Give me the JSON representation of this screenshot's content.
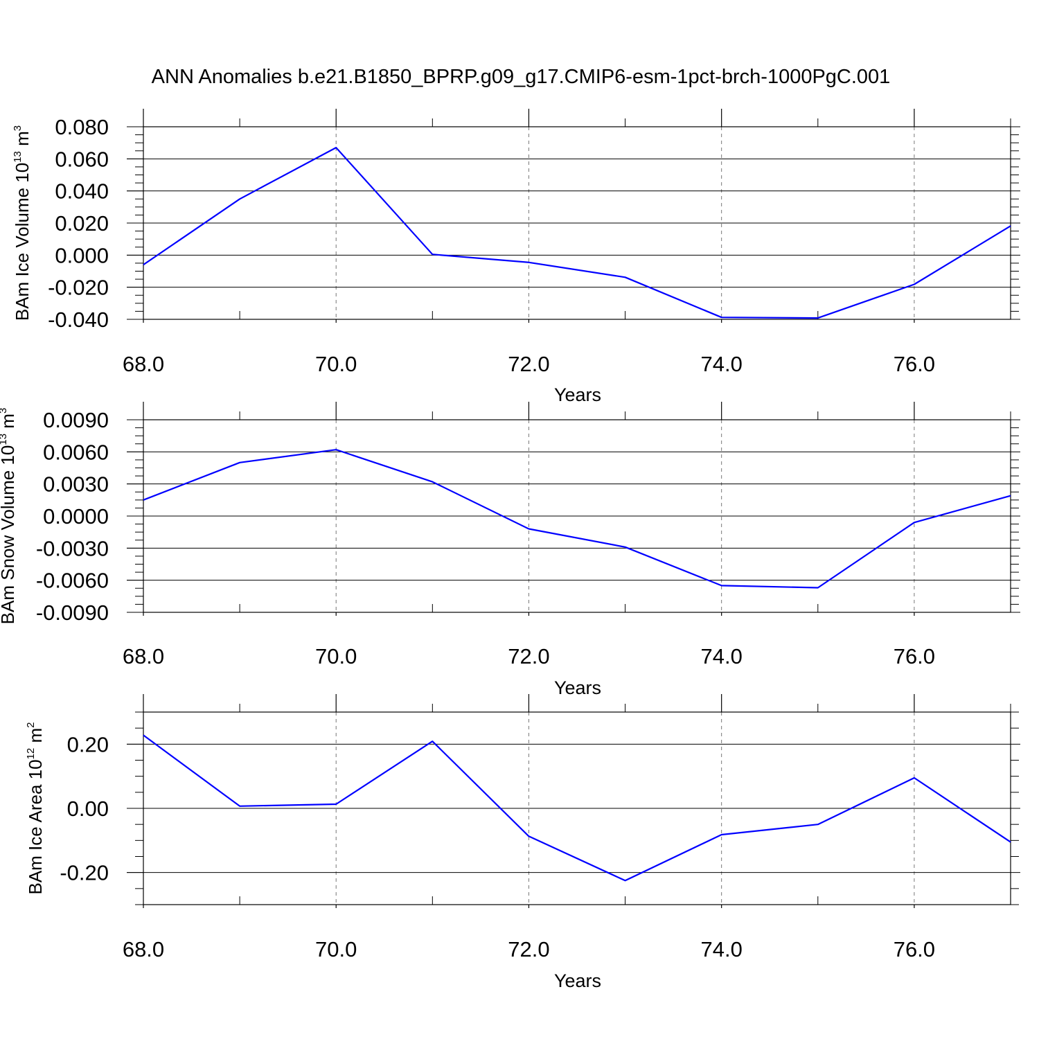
{
  "title": "ANN Anomalies b.e21.B1850_BPRP.g09_g17.CMIP6-esm-1pct-brch-1000PgC.001",
  "line_color": "#0000ff",
  "chart_data": [
    {
      "type": "line",
      "ylabel": {
        "main": "BAm Ice Volume 10",
        "exp": "13",
        "unit": " m",
        "unit_exp": "3"
      },
      "xlabel": "Years",
      "x": [
        68,
        69,
        70,
        71,
        72,
        73,
        74,
        75,
        76,
        77
      ],
      "values": [
        -0.006,
        0.035,
        0.067,
        0.0005,
        -0.0045,
        -0.0138,
        -0.0388,
        -0.0392,
        -0.0182,
        0.0182
      ],
      "xlim": [
        68,
        77
      ],
      "ylim": [
        -0.04,
        0.08
      ],
      "xticks": [
        "68.0",
        "70.0",
        "72.0",
        "74.0",
        "76.0"
      ],
      "yticks": [
        "0.080",
        "0.060",
        "0.040",
        "0.020",
        "0.000",
        "-0.020",
        "-0.040"
      ],
      "grid": "vertical dashed at major x ticks"
    },
    {
      "type": "line",
      "ylabel": {
        "main": "BAm Snow Volume 10",
        "exp": "13",
        "unit": " m",
        "unit_exp": "3"
      },
      "xlabel": "Years",
      "x": [
        68,
        69,
        70,
        71,
        72,
        73,
        74,
        75,
        76,
        77
      ],
      "values": [
        0.0015,
        0.005,
        0.0062,
        0.0032,
        -0.0012,
        -0.0029,
        -0.0065,
        -0.0067,
        -0.0006,
        0.0019
      ],
      "xlim": [
        68,
        77
      ],
      "ylim": [
        -0.009,
        0.009
      ],
      "xticks": [
        "68.0",
        "70.0",
        "72.0",
        "74.0",
        "76.0"
      ],
      "yticks": [
        "0.0090",
        "0.0060",
        "0.0030",
        "0.0000",
        "-0.0030",
        "-0.0060",
        "-0.0090"
      ],
      "grid": "vertical dashed at major x ticks"
    },
    {
      "type": "line",
      "ylabel": {
        "main": "BAm Ice Area 10",
        "exp": "12",
        "unit": " m",
        "unit_exp": "2"
      },
      "xlabel": "Years",
      "x": [
        68,
        69,
        70,
        71,
        72,
        73,
        74,
        75,
        76,
        77
      ],
      "values": [
        0.228,
        0.007,
        0.013,
        0.209,
        -0.087,
        -0.225,
        -0.082,
        -0.05,
        0.095,
        -0.105
      ],
      "xlim": [
        68,
        77
      ],
      "ylim": [
        -0.3,
        0.3
      ],
      "xticks": [
        "68.0",
        "70.0",
        "72.0",
        "74.0",
        "76.0"
      ],
      "yticks": [
        "0.20",
        "0.00",
        "-0.20"
      ],
      "grid": "vertical dashed at major x ticks"
    }
  ]
}
